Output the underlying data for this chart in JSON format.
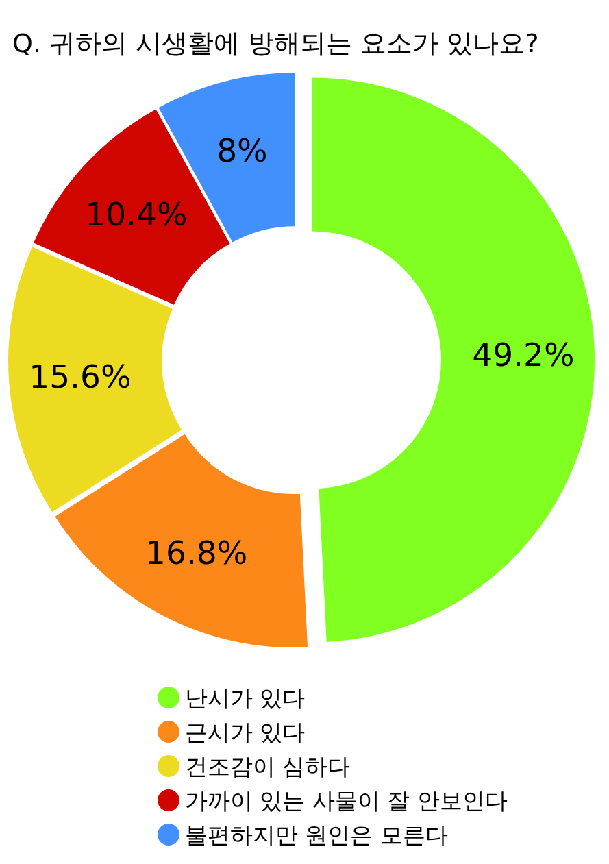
{
  "chart_data": {
    "type": "donut",
    "title": "Q. 귀하의 시생활에 방해되는 요소가 있나요?",
    "categories": [
      "난시가 있다",
      "근시가 있다",
      "건조감이 심하다",
      "가까이 있는 사물이 잘 안보인다",
      "불편하지만 원인은 모른다"
    ],
    "values": [
      49.2,
      16.8,
      15.6,
      10.4,
      8
    ],
    "colors": [
      "#80ff20",
      "#fb8818",
      "#ecdb20",
      "#d00500",
      "#428ffe"
    ],
    "value_labels": [
      "49.2%",
      "16.8%",
      "15.6%",
      "10.4%",
      "8%"
    ],
    "legend": "bottom"
  }
}
